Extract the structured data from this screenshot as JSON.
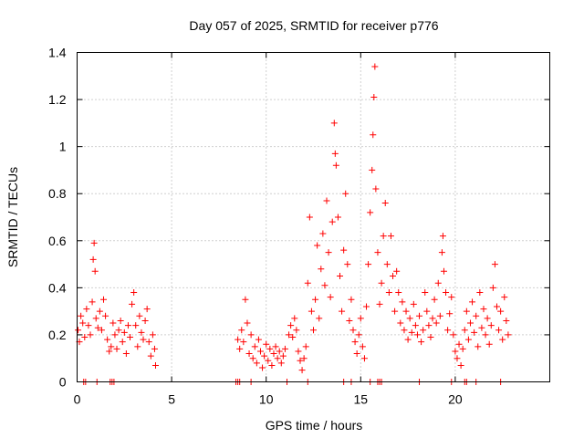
{
  "chart_data": {
    "type": "scatter",
    "title": "Day 057 of 2025, SRMTID for receiver p776",
    "xlabel": "GPS time / hours",
    "ylabel": "SRMTID / TECUs",
    "xlim": [
      0,
      25
    ],
    "ylim": [
      0,
      1.4
    ],
    "xticks": [
      0,
      5,
      10,
      15,
      20
    ],
    "xtick_labels": [
      "0",
      "5",
      "10",
      "15",
      "20"
    ],
    "yticks": [
      0,
      0.2,
      0.4,
      0.6,
      0.8,
      1.0,
      1.2,
      1.4
    ],
    "ytick_labels": [
      "0",
      "0.2",
      "0.4",
      "0.6",
      "0.8",
      "1",
      "1.2",
      "1.4"
    ],
    "grid": true,
    "marker": "+",
    "color": "#ff0000",
    "series": [
      {
        "name": "SRMTID",
        "points": [
          [
            0.05,
            0.22
          ],
          [
            0.12,
            0.17
          ],
          [
            0.2,
            0.28
          ],
          [
            0.3,
            0.25
          ],
          [
            0.4,
            0.19
          ],
          [
            0.5,
            0.31
          ],
          [
            0.6,
            0.24
          ],
          [
            0.7,
            0.2
          ],
          [
            0.8,
            0.34
          ],
          [
            0.85,
            0.52
          ],
          [
            0.9,
            0.59
          ],
          [
            0.95,
            0.47
          ],
          [
            1.0,
            0.27
          ],
          [
            1.1,
            0.23
          ],
          [
            1.2,
            0.3
          ],
          [
            1.3,
            0.22
          ],
          [
            1.4,
            0.35
          ],
          [
            1.5,
            0.28
          ],
          [
            1.6,
            0.18
          ],
          [
            1.7,
            0.13
          ],
          [
            1.8,
            0.15
          ],
          [
            1.9,
            0.25
          ],
          [
            2.0,
            0.2
          ],
          [
            2.1,
            0.14
          ],
          [
            2.2,
            0.22
          ],
          [
            2.3,
            0.26
          ],
          [
            2.4,
            0.17
          ],
          [
            2.5,
            0.21
          ],
          [
            2.6,
            0.12
          ],
          [
            2.7,
            0.24
          ],
          [
            2.8,
            0.19
          ],
          [
            2.9,
            0.33
          ],
          [
            3.0,
            0.38
          ],
          [
            3.1,
            0.24
          ],
          [
            3.2,
            0.15
          ],
          [
            3.3,
            0.28
          ],
          [
            3.4,
            0.21
          ],
          [
            3.5,
            0.18
          ],
          [
            3.6,
            0.26
          ],
          [
            3.7,
            0.31
          ],
          [
            3.8,
            0.17
          ],
          [
            3.9,
            0.11
          ],
          [
            4.0,
            0.2
          ],
          [
            4.1,
            0.14
          ],
          [
            4.15,
            0.07
          ],
          [
            8.5,
            0.18
          ],
          [
            8.6,
            0.14
          ],
          [
            8.7,
            0.22
          ],
          [
            8.8,
            0.17
          ],
          [
            8.9,
            0.35
          ],
          [
            9.0,
            0.25
          ],
          [
            9.1,
            0.12
          ],
          [
            9.2,
            0.2
          ],
          [
            9.3,
            0.1
          ],
          [
            9.4,
            0.15
          ],
          [
            9.5,
            0.08
          ],
          [
            9.6,
            0.18
          ],
          [
            9.7,
            0.13
          ],
          [
            9.8,
            0.06
          ],
          [
            9.9,
            0.11
          ],
          [
            10.0,
            0.16
          ],
          [
            10.1,
            0.09
          ],
          [
            10.2,
            0.14
          ],
          [
            10.3,
            0.07
          ],
          [
            10.4,
            0.12
          ],
          [
            10.5,
            0.15
          ],
          [
            10.6,
            0.1
          ],
          [
            10.7,
            0.13
          ],
          [
            10.8,
            0.08
          ],
          [
            10.9,
            0.11
          ],
          [
            11.0,
            0.14
          ],
          [
            11.2,
            0.2
          ],
          [
            11.3,
            0.24
          ],
          [
            11.4,
            0.19
          ],
          [
            11.5,
            0.27
          ],
          [
            11.6,
            0.22
          ],
          [
            11.7,
            0.13
          ],
          [
            11.8,
            0.09
          ],
          [
            11.9,
            0.05
          ],
          [
            12.0,
            0.1
          ],
          [
            12.1,
            0.15
          ],
          [
            12.2,
            0.42
          ],
          [
            12.3,
            0.7
          ],
          [
            12.4,
            0.3
          ],
          [
            12.5,
            0.22
          ],
          [
            12.6,
            0.35
          ],
          [
            12.7,
            0.58
          ],
          [
            12.8,
            0.27
          ],
          [
            12.9,
            0.48
          ],
          [
            13.0,
            0.63
          ],
          [
            13.1,
            0.41
          ],
          [
            13.2,
            0.77
          ],
          [
            13.3,
            0.55
          ],
          [
            13.4,
            0.36
          ],
          [
            13.5,
            0.68
          ],
          [
            13.6,
            1.1
          ],
          [
            13.65,
            0.97
          ],
          [
            13.7,
            0.92
          ],
          [
            13.8,
            0.7
          ],
          [
            13.9,
            0.45
          ],
          [
            14.0,
            0.3
          ],
          [
            14.1,
            0.56
          ],
          [
            14.2,
            0.8
          ],
          [
            14.3,
            0.5
          ],
          [
            14.4,
            0.26
          ],
          [
            14.5,
            0.35
          ],
          [
            14.6,
            0.22
          ],
          [
            14.7,
            0.17
          ],
          [
            14.8,
            0.12
          ],
          [
            14.9,
            0.2
          ],
          [
            15.0,
            0.27
          ],
          [
            15.1,
            0.15
          ],
          [
            15.2,
            0.1
          ],
          [
            15.3,
            0.32
          ],
          [
            15.4,
            0.5
          ],
          [
            15.5,
            0.72
          ],
          [
            15.6,
            0.9
          ],
          [
            15.65,
            1.05
          ],
          [
            15.7,
            1.21
          ],
          [
            15.75,
            1.34
          ],
          [
            15.8,
            0.82
          ],
          [
            15.9,
            0.55
          ],
          [
            16.0,
            0.33
          ],
          [
            16.1,
            0.42
          ],
          [
            16.2,
            0.62
          ],
          [
            16.3,
            0.76
          ],
          [
            16.4,
            0.5
          ],
          [
            16.5,
            0.38
          ],
          [
            16.6,
            0.62
          ],
          [
            16.7,
            0.45
          ],
          [
            16.8,
            0.3
          ],
          [
            16.9,
            0.47
          ],
          [
            17.0,
            0.38
          ],
          [
            17.1,
            0.25
          ],
          [
            17.2,
            0.34
          ],
          [
            17.3,
            0.22
          ],
          [
            17.4,
            0.3
          ],
          [
            17.5,
            0.18
          ],
          [
            17.6,
            0.27
          ],
          [
            17.7,
            0.21
          ],
          [
            17.8,
            0.33
          ],
          [
            17.9,
            0.24
          ],
          [
            18.0,
            0.2
          ],
          [
            18.1,
            0.28
          ],
          [
            18.2,
            0.17
          ],
          [
            18.3,
            0.22
          ],
          [
            18.4,
            0.38
          ],
          [
            18.5,
            0.3
          ],
          [
            18.6,
            0.24
          ],
          [
            18.7,
            0.19
          ],
          [
            18.8,
            0.27
          ],
          [
            18.9,
            0.35
          ],
          [
            19.0,
            0.25
          ],
          [
            19.1,
            0.42
          ],
          [
            19.2,
            0.28
          ],
          [
            19.3,
            0.55
          ],
          [
            19.35,
            0.62
          ],
          [
            19.4,
            0.47
          ],
          [
            19.5,
            0.38
          ],
          [
            19.6,
            0.22
          ],
          [
            19.7,
            0.29
          ],
          [
            19.8,
            0.36
          ],
          [
            19.9,
            0.2
          ],
          [
            20.0,
            0.13
          ],
          [
            20.1,
            0.1
          ],
          [
            20.2,
            0.16
          ],
          [
            20.3,
            0.07
          ],
          [
            20.4,
            0.14
          ],
          [
            20.5,
            0.22
          ],
          [
            20.6,
            0.3
          ],
          [
            20.7,
            0.18
          ],
          [
            20.8,
            0.25
          ],
          [
            20.9,
            0.34
          ],
          [
            21.0,
            0.21
          ],
          [
            21.1,
            0.28
          ],
          [
            21.2,
            0.15
          ],
          [
            21.3,
            0.38
          ],
          [
            21.4,
            0.23
          ],
          [
            21.5,
            0.31
          ],
          [
            21.6,
            0.2
          ],
          [
            21.7,
            0.27
          ],
          [
            21.8,
            0.16
          ],
          [
            21.9,
            0.24
          ],
          [
            22.0,
            0.4
          ],
          [
            22.1,
            0.5
          ],
          [
            22.2,
            0.32
          ],
          [
            22.3,
            0.22
          ],
          [
            22.4,
            0.3
          ],
          [
            22.5,
            0.18
          ],
          [
            22.6,
            0.36
          ],
          [
            22.7,
            0.26
          ],
          [
            22.8,
            0.2
          ],
          [
            0.35,
            0.0
          ],
          [
            0.45,
            0.0
          ],
          [
            1.05,
            0.0
          ],
          [
            1.75,
            0.0
          ],
          [
            1.85,
            0.0
          ],
          [
            1.95,
            0.0
          ],
          [
            8.4,
            0.0
          ],
          [
            8.5,
            0.0
          ],
          [
            8.6,
            0.0
          ],
          [
            9.2,
            0.0
          ],
          [
            11.1,
            0.0
          ],
          [
            12.2,
            0.0
          ],
          [
            14.1,
            0.0
          ],
          [
            14.5,
            0.0
          ],
          [
            15.5,
            0.0
          ],
          [
            15.9,
            0.0
          ],
          [
            16.0,
            0.0
          ],
          [
            16.1,
            0.0
          ],
          [
            18.1,
            0.0
          ],
          [
            19.8,
            0.0
          ],
          [
            20.5,
            0.0
          ],
          [
            20.6,
            0.0
          ],
          [
            21.1,
            0.0
          ],
          [
            22.4,
            0.0
          ]
        ]
      }
    ]
  }
}
